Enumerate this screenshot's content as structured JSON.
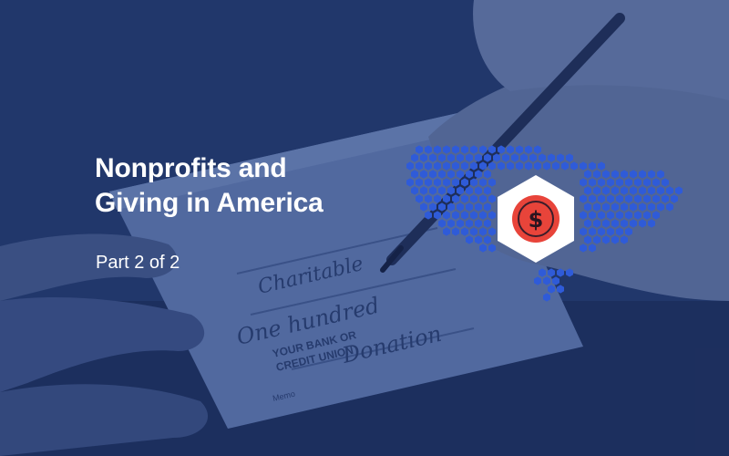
{
  "hero": {
    "title_line1": "Nonprofits and",
    "title_line2": "Giving in America",
    "subtitle": "Part 2 of 2"
  },
  "background": {
    "check_text": {
      "payee": "Charitable",
      "amount_words": "One hundred",
      "bank_line1": "YOUR BANK OR",
      "bank_line2": "CREDIT UNION",
      "memo_label": "Memo",
      "memo_value": "Donation"
    }
  },
  "icons": {
    "map": "usa-hexagon-map-icon",
    "badge": "dollar-coin-icon"
  },
  "colors": {
    "overlay": "#2a4276",
    "map_hex": "#2f5bd8",
    "coin": "#e8443a",
    "text": "#ffffff"
  }
}
